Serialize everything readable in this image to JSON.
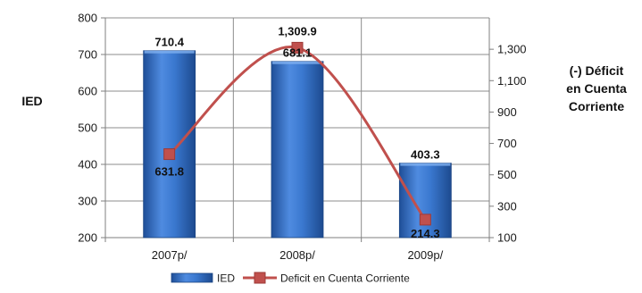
{
  "chart_data": {
    "type": "bar",
    "categories": [
      "2007p/",
      "2008p/",
      "2009p/"
    ],
    "series": [
      {
        "name": "IED",
        "type": "bar",
        "axis": "left",
        "values": [
          710.4,
          681.1,
          403.3
        ],
        "labels": [
          "710.4",
          "681.1",
          "403.3"
        ],
        "color": "#2f6fc0"
      },
      {
        "name": "Deficit en Cuenta Corriente",
        "type": "line",
        "axis": "right",
        "values": [
          631.8,
          1309.9,
          214.3
        ],
        "labels": [
          "631.8",
          "1,309.9",
          "214.3"
        ],
        "color": "#c0504d"
      }
    ],
    "y_left": {
      "label": "IED",
      "range": [
        200,
        800
      ],
      "ticks": [
        200,
        300,
        400,
        500,
        600,
        700,
        800
      ],
      "tick_labels": [
        "200",
        "300",
        "400",
        "500",
        "600",
        "700",
        "800"
      ]
    },
    "y_right": {
      "label_lines": [
        "(-) Déficit",
        "en Cuenta",
        "Corriente"
      ],
      "range": [
        100,
        1500
      ],
      "ticks": [
        100,
        300,
        500,
        700,
        900,
        1100,
        1300
      ],
      "tick_labels": [
        "100",
        "300",
        "500",
        "700",
        "900",
        "1,100",
        "1,300"
      ]
    },
    "grid": true,
    "legend_position": "bottom"
  }
}
